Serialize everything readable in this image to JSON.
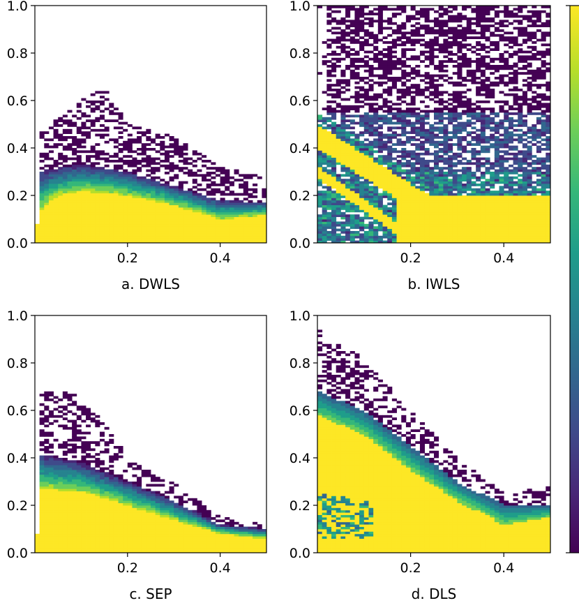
{
  "chart_data": [
    {
      "type": "heatmap",
      "id": "a",
      "caption": "a. DWLS",
      "xlim": [
        0.0,
        0.5
      ],
      "ylim": [
        0.0,
        1.0
      ],
      "x_ticks": [
        0.2,
        0.4
      ],
      "x_tick_labels": [
        "0.2",
        "0.4"
      ],
      "y_ticks": [
        0.0,
        0.2,
        0.4,
        0.6,
        0.8,
        1.0
      ],
      "y_tick_labels": [
        "0.0",
        "0.2",
        "0.4",
        "0.6",
        "0.8",
        "1.0"
      ],
      "density_regions": {
        "saturated_upper_boundary": [
          [
            0.0,
            0.12
          ],
          [
            0.05,
            0.2
          ],
          [
            0.1,
            0.22
          ],
          [
            0.2,
            0.2
          ],
          [
            0.3,
            0.16
          ],
          [
            0.4,
            0.1
          ],
          [
            0.5,
            0.12
          ]
        ],
        "band_upper_boundary": [
          [
            0.0,
            0.3
          ],
          [
            0.1,
            0.33
          ],
          [
            0.2,
            0.3
          ],
          [
            0.3,
            0.24
          ],
          [
            0.4,
            0.18
          ],
          [
            0.5,
            0.17
          ]
        ],
        "sparse_upper_boundary": [
          [
            0.0,
            0.45
          ],
          [
            0.1,
            0.6
          ],
          [
            0.15,
            0.66
          ],
          [
            0.2,
            0.5
          ],
          [
            0.3,
            0.45
          ],
          [
            0.4,
            0.32
          ],
          [
            0.5,
            0.28
          ]
        ]
      }
    },
    {
      "type": "heatmap",
      "id": "b",
      "caption": "b. IWLS",
      "xlim": [
        0.0,
        0.5
      ],
      "ylim": [
        0.0,
        1.0
      ],
      "x_ticks": [
        0.2,
        0.4
      ],
      "x_tick_labels": [
        "0.2",
        "0.4"
      ],
      "y_ticks": [
        0.0,
        0.2,
        0.4,
        0.6,
        0.8,
        1.0
      ],
      "y_tick_labels": [
        "0.0",
        "0.2",
        "0.4",
        "0.6",
        "0.8",
        "1.0"
      ],
      "density_regions": {
        "diagonal_bands": [
          [
            [
              0.0,
              0.45
            ],
            [
              0.2,
              0.2
            ]
          ],
          [
            [
              0.0,
              0.3
            ],
            [
              0.18,
              0.05
            ]
          ]
        ],
        "floor_band_upper": 0.2,
        "sparse_coverage": "entire panel"
      }
    },
    {
      "type": "heatmap",
      "id": "c",
      "caption": "c. SEP",
      "xlim": [
        0.0,
        0.5
      ],
      "ylim": [
        0.0,
        1.0
      ],
      "x_ticks": [
        0.2,
        0.4
      ],
      "x_tick_labels": [
        "0.2",
        "0.4"
      ],
      "y_ticks": [
        0.0,
        0.2,
        0.4,
        0.6,
        0.8,
        1.0
      ],
      "y_tick_labels": [
        "0.0",
        "0.2",
        "0.4",
        "0.6",
        "0.8",
        "1.0"
      ],
      "density_regions": {
        "saturated_upper_boundary": [
          [
            0.0,
            0.27
          ],
          [
            0.1,
            0.26
          ],
          [
            0.2,
            0.2
          ],
          [
            0.3,
            0.14
          ],
          [
            0.4,
            0.08
          ],
          [
            0.5,
            0.06
          ]
        ],
        "band_upper_boundary": [
          [
            0.0,
            0.42
          ],
          [
            0.1,
            0.38
          ],
          [
            0.2,
            0.3
          ],
          [
            0.3,
            0.22
          ],
          [
            0.4,
            0.12
          ],
          [
            0.5,
            0.1
          ]
        ],
        "sparse_upper_boundary": [
          [
            0.0,
            0.68
          ],
          [
            0.08,
            0.68
          ],
          [
            0.15,
            0.55
          ],
          [
            0.2,
            0.4
          ],
          [
            0.3,
            0.3
          ],
          [
            0.4,
            0.15
          ],
          [
            0.5,
            0.12
          ]
        ]
      }
    },
    {
      "type": "heatmap",
      "id": "d",
      "caption": "d. DLS",
      "xlim": [
        0.0,
        0.5
      ],
      "ylim": [
        0.0,
        1.0
      ],
      "x_ticks": [
        0.2,
        0.4
      ],
      "x_tick_labels": [
        "0.2",
        "0.4"
      ],
      "y_ticks": [
        0.0,
        0.2,
        0.4,
        0.6,
        0.8,
        1.0
      ],
      "y_tick_labels": [
        "0.0",
        "0.2",
        "0.4",
        "0.6",
        "0.8",
        "1.0"
      ],
      "density_regions": {
        "saturated_wedge_upper": [
          [
            0.0,
            0.58
          ],
          [
            0.1,
            0.5
          ],
          [
            0.2,
            0.35
          ],
          [
            0.3,
            0.22
          ],
          [
            0.4,
            0.12
          ],
          [
            0.5,
            0.15
          ]
        ],
        "band_upper_boundary": [
          [
            0.0,
            0.68
          ],
          [
            0.1,
            0.6
          ],
          [
            0.2,
            0.45
          ],
          [
            0.3,
            0.3
          ],
          [
            0.4,
            0.2
          ],
          [
            0.5,
            0.2
          ]
        ],
        "sparse_upper_boundary": [
          [
            0.0,
            0.95
          ],
          [
            0.1,
            0.82
          ],
          [
            0.2,
            0.6
          ],
          [
            0.3,
            0.4
          ],
          [
            0.4,
            0.25
          ],
          [
            0.5,
            0.28
          ]
        ]
      }
    }
  ],
  "colorbar": {
    "colormap": "viridis",
    "colors": [
      "#440154",
      "#482777",
      "#3f4a8a",
      "#31678e",
      "#26838f",
      "#1f9d8a",
      "#35b779",
      "#6cce5a",
      "#b6de2b",
      "#fde725"
    ]
  }
}
